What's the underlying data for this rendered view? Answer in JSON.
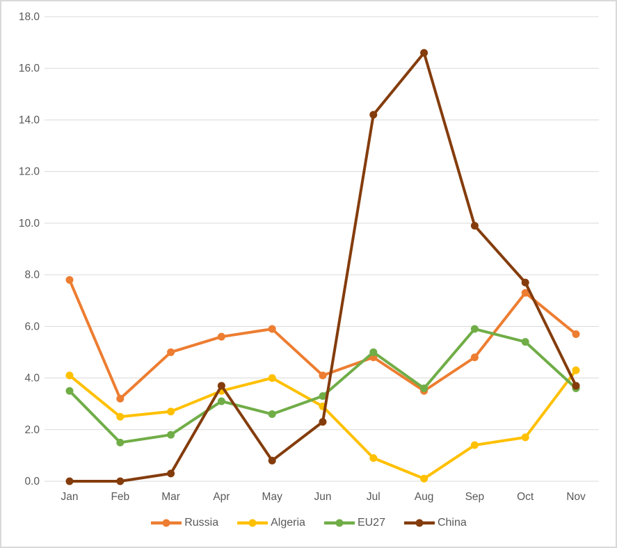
{
  "chart_data": {
    "type": "line",
    "title": "",
    "xlabel": "",
    "ylabel": "",
    "categories": [
      "Jan",
      "Feb",
      "Mar",
      "Apr",
      "May",
      "Jun",
      "Jul",
      "Aug",
      "Sep",
      "Oct",
      "Nov"
    ],
    "series": [
      {
        "name": "Russia",
        "color": "#ED7D31",
        "values": [
          7.8,
          3.2,
          5.0,
          5.6,
          5.9,
          4.1,
          4.8,
          3.5,
          4.8,
          7.3,
          5.7
        ]
      },
      {
        "name": "Algeria",
        "color": "#FFC000",
        "values": [
          4.1,
          2.5,
          2.7,
          3.5,
          4.0,
          2.9,
          0.9,
          0.1,
          1.4,
          1.7,
          4.3
        ]
      },
      {
        "name": "EU27",
        "color": "#70AD47",
        "values": [
          3.5,
          1.5,
          1.8,
          3.1,
          2.6,
          3.3,
          5.0,
          3.6,
          5.9,
          5.4,
          3.6
        ]
      },
      {
        "name": "China",
        "color": "#843C0C",
        "values": [
          0.0,
          0.0,
          0.3,
          3.7,
          0.8,
          2.3,
          14.2,
          16.6,
          9.9,
          7.7,
          3.7
        ]
      }
    ],
    "ylim": [
      0,
      18
    ],
    "ytick_step": 2,
    "ytick_labels": [
      "0.0",
      "2.0",
      "4.0",
      "6.0",
      "8.0",
      "10.0",
      "12.0",
      "14.0",
      "16.0",
      "18.0"
    ],
    "grid": "horizontal",
    "legend_position": "bottom",
    "marker": "circle"
  },
  "styles": {
    "text_color": "#595959",
    "gridline_color": "#D9D9D9",
    "frame_border_color": "#D9D9D9",
    "background": "#FFFFFF"
  }
}
